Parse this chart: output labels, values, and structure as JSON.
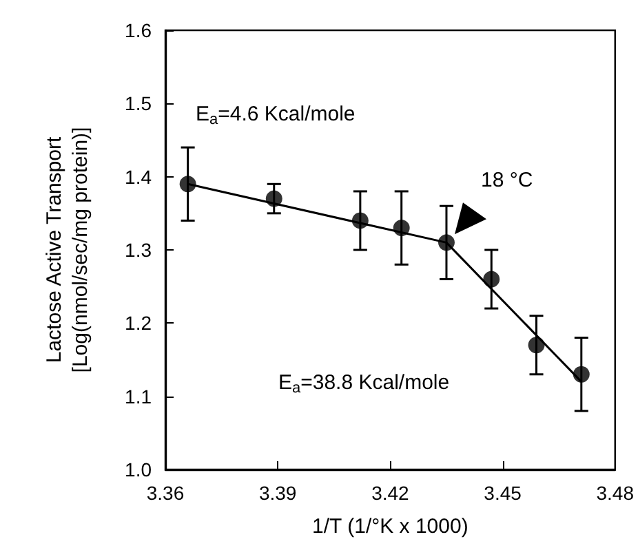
{
  "chart_data": {
    "type": "scatter",
    "xlabel": "1/T (1/°K x 1000)",
    "ylabel": "Lactose Active Transport\n[Log(nmol/sec/mg protein)]",
    "series": [
      {
        "color": "#000000",
        "marker": "circle",
        "x": [
          3.366,
          3.389,
          3.412,
          3.423,
          3.435,
          3.447,
          3.459,
          3.471
        ],
        "values": [
          1.39,
          1.37,
          1.34,
          1.33,
          1.31,
          1.26,
          1.17,
          1.13
        ],
        "errors": [
          0.05,
          0.02,
          0.04,
          0.05,
          0.05,
          0.04,
          0.04,
          0.05
        ]
      },
      {
        "type": "line",
        "color": "#000000",
        "x": [
          3.366,
          3.435
        ],
        "values": [
          1.39,
          1.31
        ]
      },
      {
        "type": "line",
        "color": "#000000",
        "x": [
          3.435,
          3.471
        ],
        "values": [
          1.31,
          1.12
        ]
      }
    ],
    "annotations": [
      "E$_{a}$=4.6 Kcal/mole",
      "E$_{a}$=38.8 Kcal/mole",
      {
        "text": "18 °C",
        "x": 3.435,
        "y": 1.31
      }
    ],
    "xlim": [
      3.36,
      3.48
    ],
    "xticks": [
      3.36,
      3.39,
      3.42,
      3.45,
      3.48
    ],
    "ylim": [
      1.0,
      1.6
    ],
    "yticks": [
      {
        "value": 1.0,
        "label": "1.0"
      },
      1.1,
      1.2,
      1.3,
      1.4,
      1.5,
      1.6
    ],
    "grid": false
  }
}
